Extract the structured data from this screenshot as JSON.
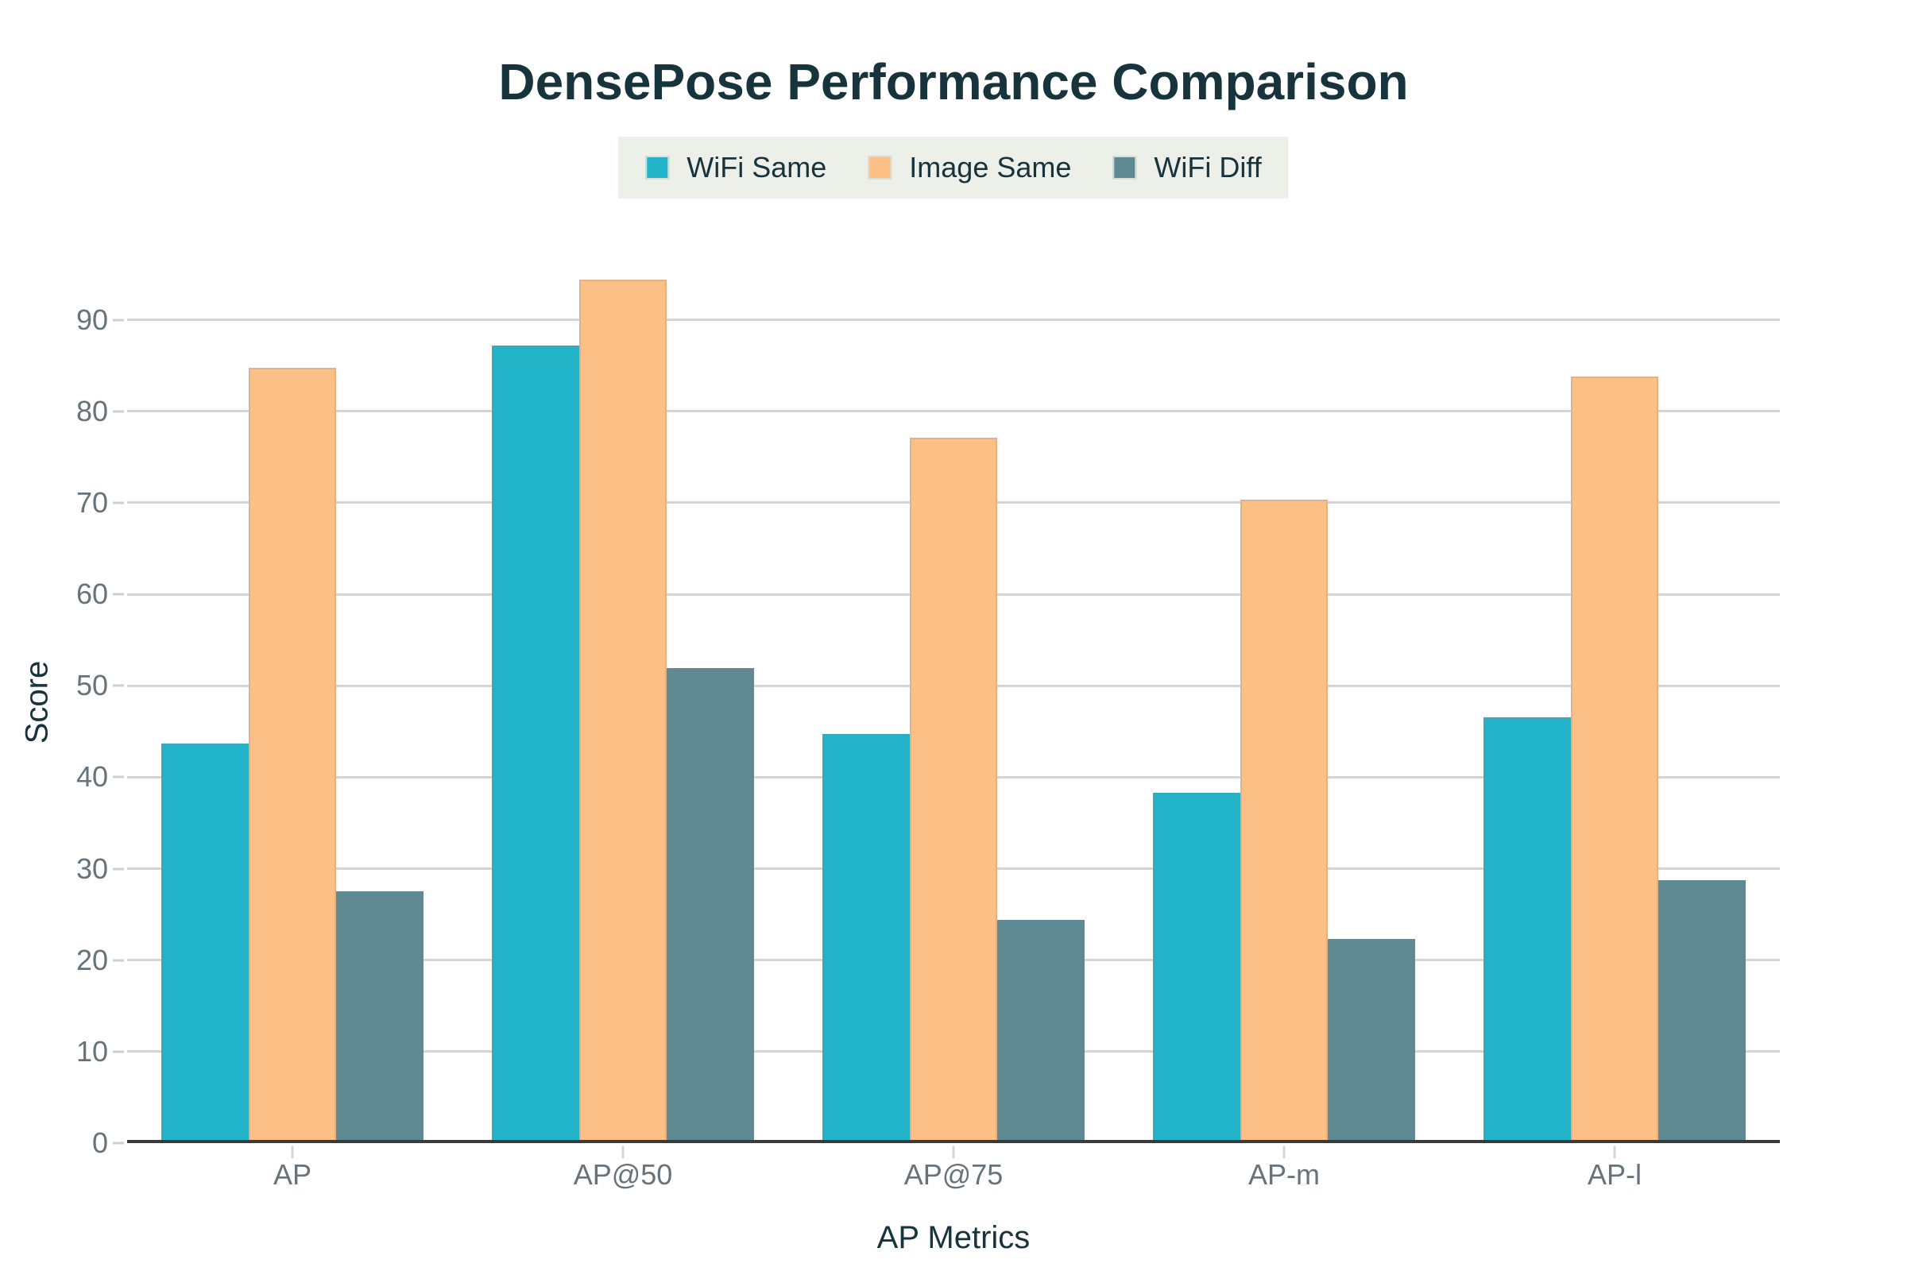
{
  "chart_data": {
    "type": "bar",
    "title": "DensePose Performance Comparison",
    "xlabel": "AP Metrics",
    "ylabel": "Score",
    "categories": [
      "AP",
      "AP@50",
      "AP@75",
      "AP-m",
      "AP-l"
    ],
    "series": [
      {
        "name": "WiFi Same",
        "color": "#22b5ca",
        "values": [
          43.5,
          87.2,
          44.6,
          38.1,
          46.4
        ]
      },
      {
        "name": "Image Same",
        "color": "#fcbf86",
        "values": [
          84.7,
          94.4,
          77.1,
          70.3,
          83.8
        ]
      },
      {
        "name": "WiFi Diff",
        "color": "#5f8a94",
        "values": [
          27.3,
          51.8,
          24.2,
          22.1,
          28.6
        ]
      }
    ],
    "yticks": [
      0,
      10,
      20,
      30,
      40,
      50,
      60,
      70,
      80,
      90
    ],
    "ylim": [
      0,
      96.3
    ],
    "grid": true,
    "legend_position": "top-center"
  },
  "colors": {
    "background": "#ffffff",
    "title_text": "#17333c",
    "tick_text": "#66737a",
    "gridline": "#d4d4d4",
    "axis_line": "#3a3a3a",
    "legend_background": "#edefe9"
  }
}
